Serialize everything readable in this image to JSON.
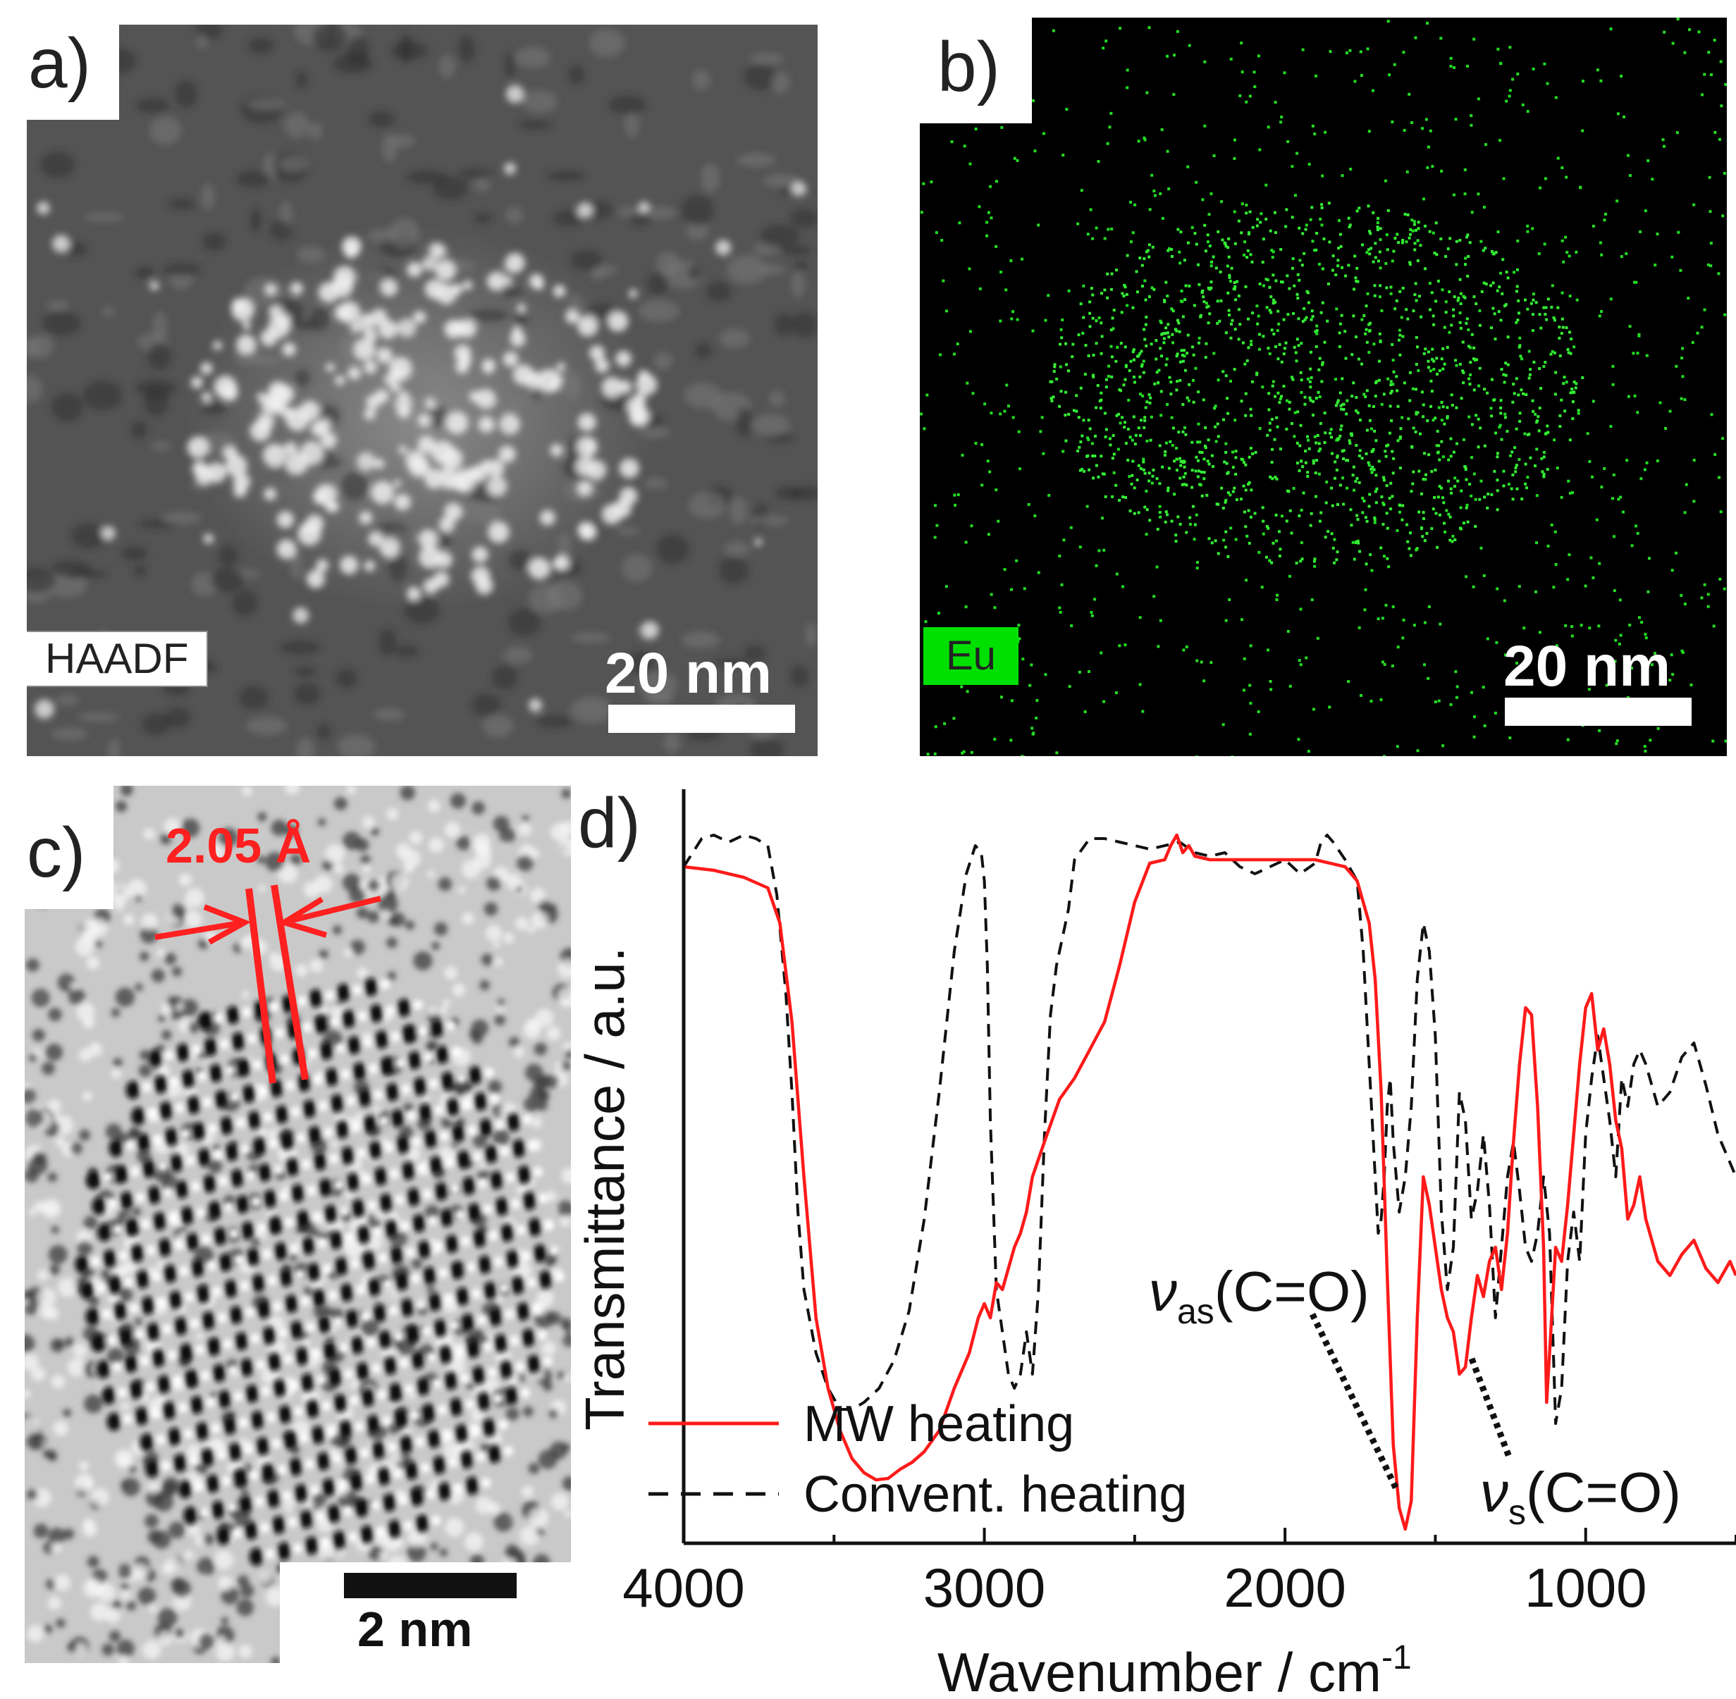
{
  "panel_a": {
    "letter": "a)",
    "tag": "HAADF",
    "scalebar": "20 nm",
    "colors": {
      "background": "#555555",
      "highlight": "#f2f2f2"
    }
  },
  "panel_b": {
    "letter": "b)",
    "tag": "Eu",
    "scalebar": "20 nm",
    "colors": {
      "background": "#000000",
      "dots": "#22dd22",
      "tag_bg": "#00e000"
    }
  },
  "panel_c": {
    "letter": "c)",
    "measurement": "2.05 Å",
    "scalebar": "2 nm",
    "colors": {
      "annotation": "#ff2020"
    }
  },
  "panel_d": {
    "letter": "d)",
    "xlabel_main": "Wavenumber / cm",
    "xlabel_sup": "-1",
    "ylabel": "Transmittance / a.u.",
    "annotation_as_main": "ν",
    "annotation_as_sub": "as",
    "annotation_as_rest": "(C=O)",
    "annotation_s_main": "ν",
    "annotation_s_sub": "s",
    "annotation_s_rest": "(C=O)"
  },
  "chart_data": {
    "type": "line",
    "xlabel": "Wavenumber / cm-1",
    "ylabel": "Transmittance / a.u.",
    "xlim": [
      4000,
      500
    ],
    "ylim": [
      0,
      1
    ],
    "x_ticks": [
      4000,
      3000,
      2000,
      1000
    ],
    "x_tick_labels": [
      "4000",
      "3000",
      "2000",
      "1000"
    ],
    "legend": "bottom-left",
    "series": [
      {
        "name": "MW heating",
        "color": "#ff1a1a",
        "dash": "solid",
        "x": [
          4000,
          3900,
          3800,
          3720,
          3680,
          3640,
          3600,
          3560,
          3520,
          3480,
          3440,
          3400,
          3360,
          3320,
          3280,
          3240,
          3200,
          3150,
          3100,
          3050,
          3020,
          3000,
          2980,
          2960,
          2940,
          2920,
          2900,
          2880,
          2860,
          2840,
          2800,
          2750,
          2700,
          2650,
          2600,
          2550,
          2500,
          2450,
          2400,
          2380,
          2360,
          2340,
          2320,
          2300,
          2250,
          2200,
          2100,
          2000,
          1900,
          1800,
          1760,
          1720,
          1700,
          1680,
          1660,
          1640,
          1620,
          1600,
          1580,
          1560,
          1540,
          1520,
          1500,
          1480,
          1460,
          1440,
          1420,
          1400,
          1380,
          1360,
          1340,
          1320,
          1300,
          1280,
          1260,
          1240,
          1220,
          1200,
          1180,
          1160,
          1140,
          1130,
          1120,
          1100,
          1080,
          1060,
          1040,
          1020,
          1000,
          980,
          960,
          940,
          920,
          900,
          880,
          860,
          840,
          820,
          800,
          760,
          720,
          680,
          640,
          600,
          560,
          520,
          500
        ],
        "y": [
          0.94,
          0.935,
          0.925,
          0.91,
          0.86,
          0.72,
          0.5,
          0.3,
          0.2,
          0.14,
          0.1,
          0.08,
          0.07,
          0.072,
          0.085,
          0.095,
          0.11,
          0.14,
          0.2,
          0.25,
          0.3,
          0.32,
          0.3,
          0.35,
          0.34,
          0.37,
          0.4,
          0.42,
          0.45,
          0.5,
          0.55,
          0.61,
          0.64,
          0.68,
          0.72,
          0.8,
          0.89,
          0.945,
          0.95,
          0.97,
          0.985,
          0.96,
          0.97,
          0.955,
          0.95,
          0.95,
          0.95,
          0.95,
          0.95,
          0.94,
          0.92,
          0.86,
          0.78,
          0.62,
          0.36,
          0.12,
          0.03,
          0.0,
          0.04,
          0.3,
          0.5,
          0.46,
          0.4,
          0.34,
          0.3,
          0.28,
          0.22,
          0.23,
          0.3,
          0.36,
          0.33,
          0.38,
          0.4,
          0.34,
          0.42,
          0.55,
          0.66,
          0.74,
          0.73,
          0.6,
          0.4,
          0.18,
          0.25,
          0.4,
          0.38,
          0.46,
          0.56,
          0.66,
          0.74,
          0.76,
          0.68,
          0.71,
          0.66,
          0.58,
          0.54,
          0.44,
          0.46,
          0.5,
          0.44,
          0.38,
          0.36,
          0.39,
          0.41,
          0.37,
          0.35,
          0.38,
          0.36
        ]
      },
      {
        "name": "Convent. heating",
        "color": "#111111",
        "dash": "dashed",
        "x": [
          4000,
          3940,
          3900,
          3850,
          3800,
          3760,
          3720,
          3690,
          3660,
          3640,
          3620,
          3600,
          3560,
          3520,
          3480,
          3440,
          3400,
          3350,
          3300,
          3250,
          3200,
          3150,
          3100,
          3060,
          3030,
          3010,
          3000,
          2990,
          2980,
          2960,
          2940,
          2920,
          2900,
          2880,
          2860,
          2840,
          2820,
          2800,
          2780,
          2760,
          2740,
          2720,
          2700,
          2650,
          2600,
          2550,
          2500,
          2450,
          2400,
          2350,
          2300,
          2250,
          2200,
          2150,
          2100,
          2050,
          2000,
          1950,
          1900,
          1880,
          1860,
          1840,
          1800,
          1760,
          1740,
          1720,
          1700,
          1690,
          1680,
          1670,
          1660,
          1650,
          1640,
          1620,
          1600,
          1580,
          1560,
          1540,
          1520,
          1500,
          1480,
          1460,
          1440,
          1420,
          1400,
          1380,
          1360,
          1340,
          1320,
          1300,
          1280,
          1260,
          1240,
          1220,
          1200,
          1180,
          1160,
          1140,
          1120,
          1100,
          1080,
          1060,
          1040,
          1020,
          1000,
          980,
          960,
          940,
          920,
          900,
          880,
          860,
          840,
          820,
          800,
          760,
          720,
          680,
          640,
          600,
          560,
          520,
          500
        ],
        "y": [
          0.94,
          0.98,
          0.985,
          0.975,
          0.985,
          0.98,
          0.97,
          0.9,
          0.76,
          0.62,
          0.45,
          0.34,
          0.25,
          0.2,
          0.17,
          0.17,
          0.18,
          0.2,
          0.24,
          0.31,
          0.44,
          0.62,
          0.82,
          0.93,
          0.97,
          0.96,
          0.92,
          0.8,
          0.58,
          0.34,
          0.28,
          0.22,
          0.2,
          0.22,
          0.28,
          0.22,
          0.34,
          0.56,
          0.73,
          0.8,
          0.84,
          0.88,
          0.95,
          0.98,
          0.98,
          0.975,
          0.97,
          0.965,
          0.97,
          0.975,
          0.96,
          0.955,
          0.96,
          0.94,
          0.93,
          0.94,
          0.95,
          0.93,
          0.945,
          0.975,
          0.985,
          0.975,
          0.95,
          0.92,
          0.82,
          0.66,
          0.5,
          0.42,
          0.44,
          0.5,
          0.6,
          0.64,
          0.55,
          0.45,
          0.5,
          0.6,
          0.78,
          0.86,
          0.82,
          0.7,
          0.45,
          0.34,
          0.4,
          0.62,
          0.58,
          0.44,
          0.48,
          0.56,
          0.46,
          0.3,
          0.4,
          0.5,
          0.55,
          0.48,
          0.4,
          0.38,
          0.42,
          0.5,
          0.42,
          0.15,
          0.2,
          0.38,
          0.45,
          0.38,
          0.56,
          0.64,
          0.7,
          0.64,
          0.58,
          0.5,
          0.64,
          0.6,
          0.66,
          0.68,
          0.66,
          0.6,
          0.62,
          0.67,
          0.69,
          0.63,
          0.56,
          0.52,
          0.5
        ]
      }
    ]
  }
}
